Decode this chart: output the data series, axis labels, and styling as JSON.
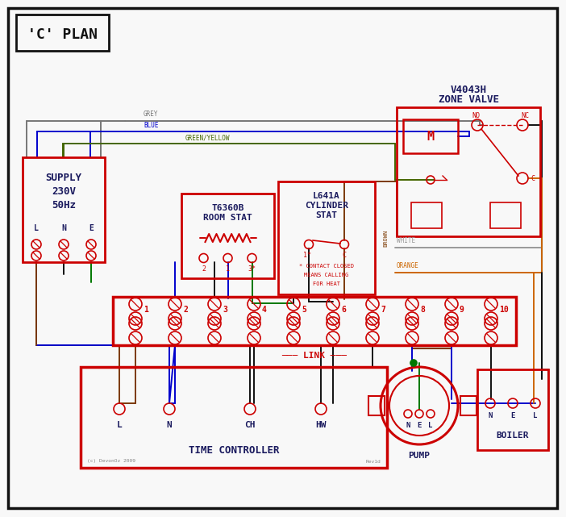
{
  "bg": "#f8f8f8",
  "RED": "#cc0000",
  "BLUE": "#0000cc",
  "GREEN": "#007700",
  "GREY": "#777777",
  "BROWN": "#7b3800",
  "ORANGE": "#cc6600",
  "BLACK": "#111111",
  "GYL": "#446600",
  "TEXT": "#1a1a5e",
  "title": "'C' PLAN",
  "supply_lines": [
    "SUPPLY",
    "230V",
    "50Hz"
  ],
  "lne": [
    "L",
    "N",
    "E"
  ],
  "zv_title": [
    "V4043H",
    "ZONE VALVE"
  ],
  "rs_title": [
    "T6360B",
    "ROOM STAT"
  ],
  "cs_title": [
    "L641A",
    "CYLINDER",
    "STAT"
  ],
  "tc_label": "TIME CONTROLLER",
  "tc_terms": [
    "L",
    "N",
    "CH",
    "HW"
  ],
  "pump_label": "PUMP",
  "pump_terms": [
    "N",
    "E",
    "L"
  ],
  "boiler_label": "BOILER",
  "boiler_terms": [
    "N",
    "E",
    "L"
  ],
  "strip_nums": [
    "1",
    "2",
    "3",
    "4",
    "5",
    "6",
    "7",
    "8",
    "9",
    "10"
  ],
  "link_label": "LINK",
  "note": [
    "* CONTACT CLOSED",
    "MEANS CALLING",
    "FOR HEAT"
  ],
  "copyright": "(c) DevonOz 2009",
  "revision": "Rev1d",
  "grey_label": "GREY",
  "blue_label": "BLUE",
  "gy_label": "GREEN/YELLOW",
  "brown_label": "BROWN",
  "white_label": "WHITE",
  "orange_label": "ORANGE"
}
